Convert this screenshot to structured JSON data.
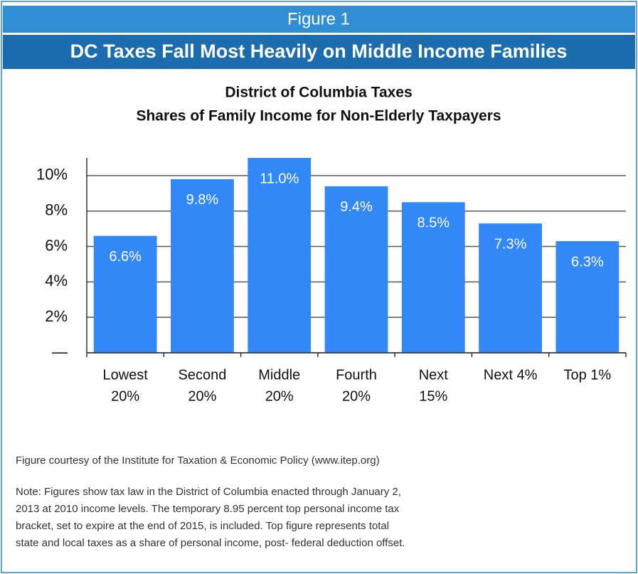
{
  "figure_label": "Figure 1",
  "headline": "DC Taxes Fall Most Heavily on Middle Income Families",
  "chart_data": {
    "type": "bar",
    "title": [
      "District of Columbia Taxes",
      "Shares of Family Income for Non-Elderly Taxpayers"
    ],
    "categories": [
      [
        "Lowest",
        "20%"
      ],
      [
        "Second",
        "20%"
      ],
      [
        "Middle",
        "20%"
      ],
      [
        "Fourth",
        "20%"
      ],
      [
        "Next",
        "15%"
      ],
      [
        "Next 4%"
      ],
      [
        "Top 1%"
      ]
    ],
    "values": [
      6.6,
      9.8,
      11.0,
      9.4,
      8.5,
      7.3,
      6.3
    ],
    "value_labels": [
      "6.6%",
      "9.8%",
      "11.0%",
      "9.4%",
      "8.5%",
      "7.3%",
      "6.3%"
    ],
    "color": "#3388f8",
    "ylim": [
      0,
      11
    ],
    "yticks": [
      {
        "value": 0,
        "label": "—"
      },
      {
        "value": 2,
        "label": "2%"
      },
      {
        "value": 4,
        "label": "4%"
      },
      {
        "value": 6,
        "label": "6%"
      },
      {
        "value": 8,
        "label": "8%"
      },
      {
        "value": 10,
        "label": "10%"
      }
    ],
    "grid": true
  },
  "source": "Figure courtesy of the Institute for Taxation & Economic Policy (www.itep.org)",
  "note": [
    "Note: Figures show tax law in the District of Columbia enacted through January 2,",
    "2013 at 2010 income levels.  The temporary 8.95 percent top personal income tax",
    "bracket, set to expire at the end of 2015, is included.  Top figure represents total",
    "state and local taxes as a share of personal income, post- federal deduction offset."
  ]
}
